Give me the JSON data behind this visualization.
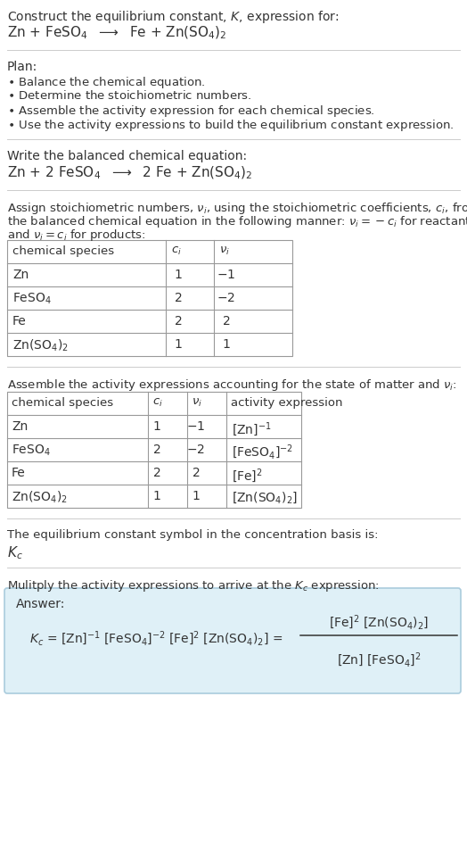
{
  "title_line1": "Construct the equilibrium constant, $K$, expression for:",
  "title_line2_plain": "Zn + FeSO",
  "title_line2": "Zn + FeSO$_4$  $\\longrightarrow$  Fe + Zn(SO$_4$)$_2$",
  "plan_header": "Plan:",
  "plan_items": [
    "$\\bullet$ Balance the chemical equation.",
    "$\\bullet$ Determine the stoichiometric numbers.",
    "$\\bullet$ Assemble the activity expression for each chemical species.",
    "$\\bullet$ Use the activity expressions to build the equilibrium constant expression."
  ],
  "balanced_header": "Write the balanced chemical equation:",
  "balanced_eq": "Zn + 2 FeSO$_4$  $\\longrightarrow$  2 Fe + Zn(SO$_4$)$_2$",
  "stoich_intro_1": "Assign stoichiometric numbers, $\\nu_i$, using the stoichiometric coefficients, $c_i$, from",
  "stoich_intro_2": "the balanced chemical equation in the following manner: $\\nu_i = -c_i$ for reactants",
  "stoich_intro_3": "and $\\nu_i = c_i$ for products:",
  "table1_headers": [
    "chemical species",
    "$c_i$",
    "$\\nu_i$"
  ],
  "table1_rows": [
    [
      "Zn",
      "1",
      "$-1$"
    ],
    [
      "FeSO$_4$",
      "2",
      "$-2$"
    ],
    [
      "Fe",
      "2",
      "2"
    ],
    [
      "Zn(SO$_4$)$_2$",
      "1",
      "1"
    ]
  ],
  "activity_intro": "Assemble the activity expressions accounting for the state of matter and $\\nu_i$:",
  "table2_headers": [
    "chemical species",
    "$c_i$",
    "$\\nu_i$",
    "activity expression"
  ],
  "table2_rows": [
    [
      "Zn",
      "1",
      "$-1$",
      "[Zn]$^{-1}$"
    ],
    [
      "FeSO$_4$",
      "2",
      "$-2$",
      "[FeSO$_4$]$^{-2}$"
    ],
    [
      "Fe",
      "2",
      "2",
      "[Fe]$^2$"
    ],
    [
      "Zn(SO$_4$)$_2$",
      "1",
      "1",
      "[Zn(SO$_4$)$_2$]"
    ]
  ],
  "kc_symbol_intro": "The equilibrium constant symbol in the concentration basis is:",
  "kc_symbol": "$K_c$",
  "multiply_intro": "Mulitply the activity expressions to arrive at the $K_c$ expression:",
  "answer_label": "Answer:",
  "answer_eq": "$K_c$ = [Zn]$^{-1}$ [FeSO$_4$]$^{-2}$ [Fe]$^2$ [Zn(SO$_4$)$_2$] =",
  "answer_frac_num": "[Fe]$^2$ [Zn(SO$_4$)$_2$]",
  "answer_frac_den": "[Zn] [FeSO$_4$]$^2$",
  "bg_color": "#ffffff",
  "table_border_color": "#999999",
  "answer_box_bg": "#dff0f7",
  "answer_box_border": "#aaccdd",
  "separator_color": "#cccccc",
  "text_color": "#333333"
}
